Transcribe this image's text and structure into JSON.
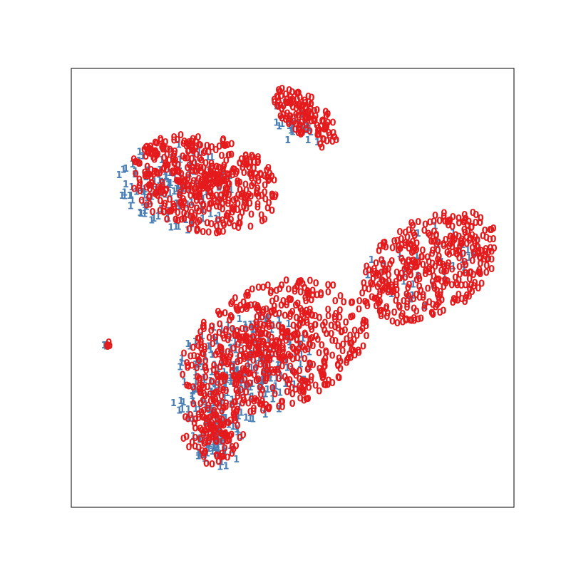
{
  "chart_data": {
    "type": "scatter",
    "title": "",
    "xlabel": "",
    "ylabel": "",
    "xlim": [
      0,
      100
    ],
    "ylim": [
      0,
      100
    ],
    "grid": false,
    "ticks": false,
    "legend": "none",
    "marker_style": "text-glyph",
    "series": [
      {
        "marker": "0",
        "color": "#e41a1c",
        "clusters": [
          {
            "id": "upper-left",
            "cx": 30,
            "cy": 73,
            "rx": 17,
            "ry": 11,
            "rot": -13,
            "density": 0.8,
            "n": 470,
            "seed": 11
          },
          {
            "id": "upper-right-arm",
            "cx": 53,
            "cy": 88,
            "rx": 9,
            "ry": 4.5,
            "rot": -42,
            "density": 0.9,
            "n": 130,
            "seed": 12
          },
          {
            "id": "lower-mid",
            "cx": 46,
            "cy": 36,
            "rx": 22,
            "ry": 14,
            "rot": 22,
            "density": 0.82,
            "n": 600,
            "seed": 13
          },
          {
            "id": "lower-right",
            "cx": 81,
            "cy": 54,
            "rx": 17,
            "ry": 11,
            "rot": 32,
            "density": 0.95,
            "n": 380,
            "seed": 14
          },
          {
            "id": "lower-tail",
            "cx": 32,
            "cy": 17,
            "rx": 7,
            "ry": 8,
            "rot": 0,
            "density": 0.6,
            "n": 120,
            "seed": 15
          },
          {
            "id": "isolated-blob",
            "cx": 8.2,
            "cy": 36.2,
            "rx": 0.8,
            "ry": 0.7,
            "rot": 0,
            "density": 0.5,
            "n": 5,
            "seed": 16
          }
        ]
      },
      {
        "marker": "1",
        "color": "#4a7fb5",
        "clusters": [
          {
            "id": "upper-left",
            "cx": 24,
            "cy": 72,
            "rx": 14,
            "ry": 10,
            "rot": -13,
            "density": 0.7,
            "n": 120,
            "seed": 21
          },
          {
            "id": "upper-right-arm",
            "cx": 50,
            "cy": 86,
            "rx": 8,
            "ry": 4,
            "rot": -42,
            "density": 0.7,
            "n": 25,
            "seed": 22
          },
          {
            "id": "lower-mid",
            "cx": 38,
            "cy": 30,
            "rx": 17,
            "ry": 12,
            "rot": 22,
            "density": 0.7,
            "n": 230,
            "seed": 23
          },
          {
            "id": "lower-right",
            "cx": 78,
            "cy": 53,
            "rx": 15,
            "ry": 9,
            "rot": 32,
            "density": 0.7,
            "n": 35,
            "seed": 24
          },
          {
            "id": "lower-tail",
            "cx": 33,
            "cy": 14,
            "rx": 6,
            "ry": 6,
            "rot": 0,
            "density": 0.6,
            "n": 60,
            "seed": 25
          },
          {
            "id": "isolated-blob",
            "cx": 7.8,
            "cy": 36.2,
            "rx": 0.5,
            "ry": 0.5,
            "rot": 0,
            "density": 0.5,
            "n": 3,
            "seed": 26
          }
        ]
      }
    ]
  }
}
